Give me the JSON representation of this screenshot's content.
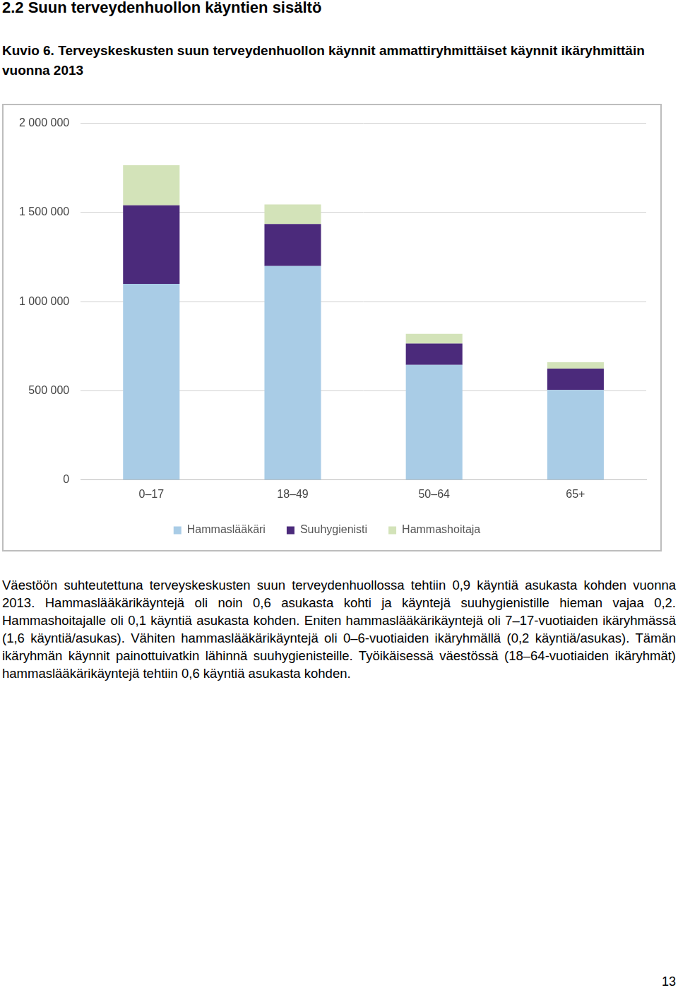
{
  "heading": "2.2 Suun terveydenhuollon käyntien sisältö",
  "caption": "Kuvio 6. Terveyskeskusten suun terveydenhuollon käynnit ammattiryhmittäiset käynnit ikäryhmittäin vuonna 2013",
  "chart_data": {
    "type": "bar",
    "stacked": true,
    "grid": true,
    "legend": "bottom",
    "categories": [
      "0–17",
      "18–49",
      "50–64",
      "65+"
    ],
    "series": [
      {
        "name": "Hammaslääkäri",
        "color": "#a9cce6",
        "values": [
          1100000,
          1200000,
          645000,
          505000
        ]
      },
      {
        "name": "Suuhygienisti",
        "color": "#4b2a7b",
        "values": [
          440000,
          235000,
          120000,
          120000
        ]
      },
      {
        "name": "Hammashoitaja",
        "color": "#d3e3b9",
        "values": [
          225000,
          110000,
          55000,
          35000
        ]
      }
    ],
    "ylim": [
      0,
      2000000
    ],
    "yticks": [
      0,
      {
        "value": 500000,
        "label": "500 000"
      },
      {
        "value": 1000000,
        "label": "1 000 000"
      },
      {
        "value": 1500000,
        "label": "1 500 000"
      },
      {
        "value": 2000000,
        "label": "2 000 000"
      }
    ]
  },
  "paragraph": "Väestöön suhteutettuna terveyskeskusten suun terveydenhuollossa tehtiin 0,9 käyntiä asukasta kohden vuonna 2013. Hammaslääkärikäyntejä oli noin 0,6 asukasta kohti ja käyntejä suuhygienistille hieman vajaa 0,2. Hammashoitajalle oli 0,1 käyntiä asukasta kohden. Eniten hammaslääkärikäyntejä oli 7–17-vuotiaiden ikäryhmässä (1,6 käyntiä/asukas). Vähiten hammaslääkärikäyntejä oli 0–6-vuotiaiden ikäryhmällä (0,2 käyntiä/asukas). Tämän ikäryhmän käynnit painottuivatkin lähinnä suuhygienisteille. Työikäisessä väestössä (18–64-vuotiaiden ikäryhmät) hammaslääkärikäyntejä tehtiin 0,6 käyntiä asukasta kohden.",
  "page_number": "13"
}
